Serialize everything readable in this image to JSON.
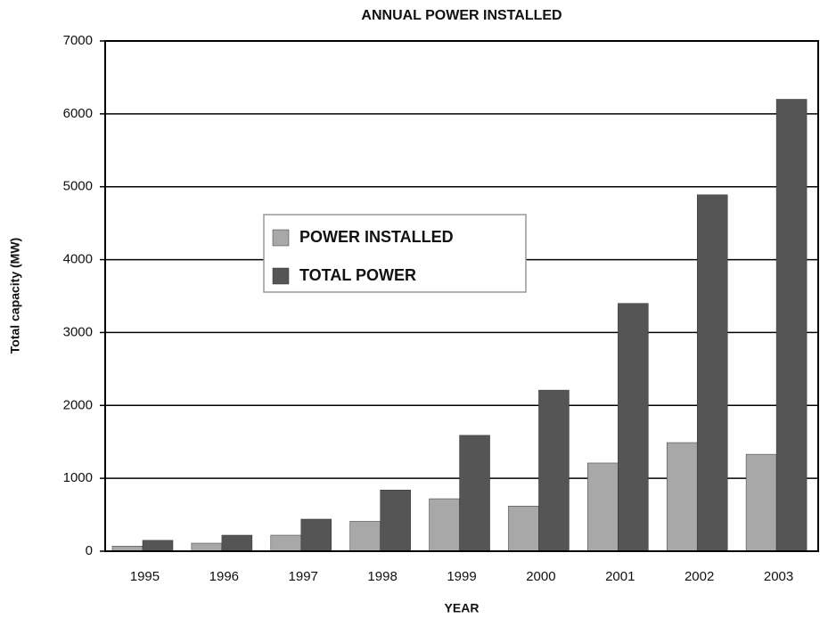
{
  "chart_data": {
    "type": "bar",
    "title": "ANNUAL POWER INSTALLED",
    "x_label": "YEAR",
    "y_label": "Total capacity (MW)",
    "categories": [
      "1995",
      "1996",
      "1997",
      "1998",
      "1999",
      "2000",
      "2001",
      "2002",
      "2003"
    ],
    "series": [
      {
        "name": "POWER INSTALLED",
        "color": "#a8a8a8",
        "values": [
          70,
          110,
          220,
          410,
          720,
          620,
          1210,
          1490,
          1330
        ]
      },
      {
        "name": "TOTAL POWER",
        "color": "#555555",
        "values": [
          150,
          220,
          440,
          840,
          1590,
          2210,
          3400,
          4890,
          6200
        ]
      }
    ],
    "ylim": [
      0,
      7000
    ],
    "yticks": [
      0,
      1000,
      2000,
      3000,
      4000,
      5000,
      6000,
      7000
    ],
    "grid": true
  }
}
